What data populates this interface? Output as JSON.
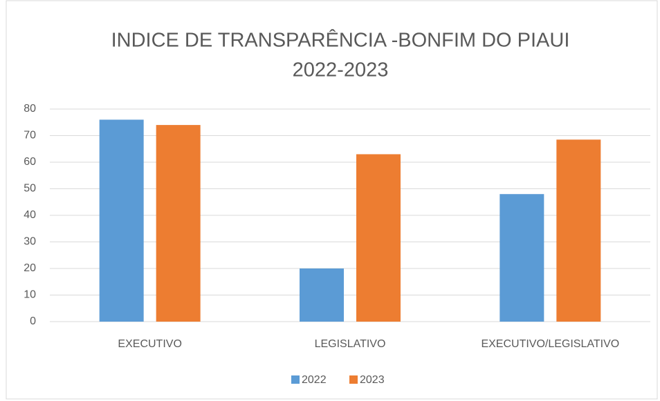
{
  "chart_data": {
    "type": "bar",
    "title": [
      "INDICE DE TRANSPARÊNCIA -BONFIM DO PIAUI",
      "2022-2023"
    ],
    "categories": [
      "EXECUTIVO",
      "LEGISLATIVO",
      "EXECUTIVO/LEGISLATIVO"
    ],
    "series": [
      {
        "name": "2022",
        "color": "#5b9bd5",
        "values": [
          76,
          20,
          48
        ]
      },
      {
        "name": "2023",
        "color": "#ed7d31",
        "values": [
          74,
          63,
          68.5
        ]
      }
    ],
    "ylim": [
      0,
      80
    ],
    "yticks": [
      0,
      10,
      20,
      30,
      40,
      50,
      60,
      70,
      80
    ],
    "grid": true,
    "legend": "bottom"
  }
}
